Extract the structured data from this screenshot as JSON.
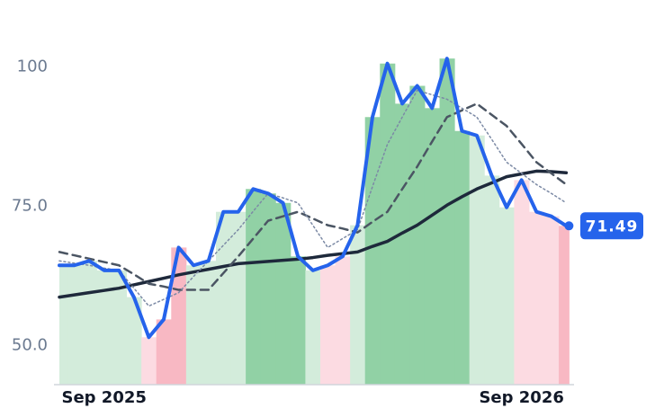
{
  "chart_data": {
    "type": "line",
    "categories": [
      null,
      null,
      null,
      "Sep 2025",
      null,
      null,
      null,
      null,
      null,
      null,
      null,
      null,
      null,
      null,
      null,
      null,
      null,
      null,
      null,
      null,
      null,
      null,
      null,
      null,
      null,
      null,
      null,
      null,
      null,
      null,
      null,
      "Sep 2026",
      null,
      null,
      null
    ],
    "ylim": [
      43,
      112
    ],
    "yticks": [
      {
        "value": 50,
        "label": "50.0"
      },
      {
        "value": 75,
        "label": "75.0"
      },
      100
    ],
    "band_colors": [
      "#d3ecdb",
      "#d3ecdb",
      "#d3ecdb",
      "#d3ecdb",
      "#d3ecdb",
      "#d3ecdb",
      "#fcdbe2",
      "#f8b8c3",
      "#f8b8c3",
      "#d3ecdb",
      "#d3ecdb",
      "#d3ecdb",
      "#d3ecdb",
      "#91d1a5",
      "#91d1a5",
      "#91d1a5",
      "#91d1a5",
      "#d3ecdb",
      "#fcdbe2",
      "#fcdbe2",
      "#d3ecdb",
      "#91d1a5",
      "#91d1a5",
      "#91d1a5",
      "#91d1a5",
      "#91d1a5",
      "#91d1a5",
      "#91d1a5",
      "#d3ecdb",
      "#d3ecdb",
      "#d3ecdb",
      "#fcdbe2",
      "#fcdbe2",
      "#fcdbe2",
      "#f8b8c3"
    ],
    "series": [
      {
        "color": "#2563eb",
        "width": 4,
        "values": [
          64.4,
          64.4,
          65.2,
          63.5,
          63.5,
          58.7,
          51.5,
          54.7,
          67.6,
          64.4,
          65.2,
          74.0,
          74.0,
          78.1,
          77.3,
          75.6,
          66.0,
          63.5,
          64.4,
          66.0,
          71.6,
          91.0,
          100.6,
          93.4,
          96.6,
          92.6,
          101.5,
          88.5,
          87.7,
          80.5,
          74.8,
          79.7,
          74.0,
          73.2,
          71.49
        ],
        "value_labels": [
          null,
          null,
          null,
          null,
          null,
          null,
          null,
          null,
          null,
          null,
          null,
          null,
          null,
          null,
          null,
          null,
          null,
          null,
          null,
          null,
          null,
          null,
          null,
          null,
          null,
          null,
          null,
          null,
          null,
          null,
          null,
          null,
          null,
          null,
          "71.49"
        ]
      },
      {
        "color": "#1e293b",
        "width": 3.5,
        "values": [
          58.7,
          59.1,
          59.5,
          59.9,
          60.3,
          60.9,
          61.5,
          62.1,
          62.7,
          63.2,
          63.7,
          64.2,
          64.7,
          64.9,
          65.1,
          65.3,
          65.5,
          65.8,
          66.2,
          66.5,
          66.8,
          67.8,
          68.7,
          70.2,
          71.6,
          73.4,
          75.2,
          76.7,
          78.1,
          79.2,
          80.3,
          80.8,
          81.3,
          81.2,
          81.0
        ]
      },
      {
        "color": "#4b5563",
        "width": 2.5,
        "dash": "9 6",
        "values": [
          66.8,
          66.2,
          65.6,
          65.0,
          64.4,
          62.8,
          61.1,
          60.6,
          60.0,
          60.0,
          60.0,
          63.0,
          66.0,
          69.2,
          72.4,
          73.2,
          74.0,
          72.8,
          71.6,
          71.0,
          70.3,
          72.2,
          74.0,
          78.1,
          82.1,
          86.6,
          91.0,
          92.2,
          93.4,
          91.4,
          89.4,
          86.2,
          82.9,
          80.9,
          78.9
        ]
      },
      {
        "color": "#7c8aa5",
        "width": 1.5,
        "dash": "2 3",
        "values": [
          65.2,
          64.8,
          64.4,
          63.9,
          63.5,
          60.3,
          57.1,
          58.3,
          59.5,
          62.4,
          65.2,
          68.0,
          70.8,
          74.1,
          77.3,
          76.5,
          75.6,
          71.6,
          67.6,
          69.2,
          70.8,
          78.5,
          86.1,
          91.0,
          95.8,
          95.0,
          94.2,
          92.6,
          91.0,
          87.0,
          82.9,
          80.9,
          78.9,
          77.3,
          75.6
        ]
      }
    ]
  }
}
